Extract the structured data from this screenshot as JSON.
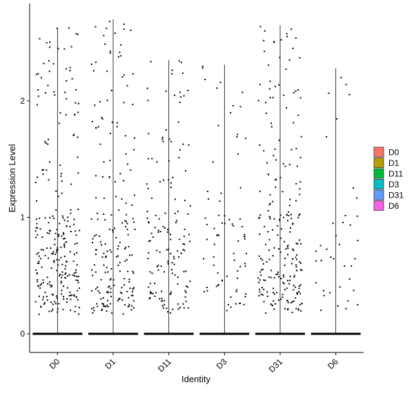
{
  "chart_data": {
    "type": "violin",
    "title": "",
    "xlabel": "Identity",
    "ylabel": "Expression Level",
    "ylim": [
      -0.15,
      2.85
    ],
    "yticks": [
      0,
      1,
      2
    ],
    "grid": false,
    "categories": [
      "D0",
      "D1",
      "D11",
      "D3",
      "D31",
      "D6"
    ],
    "legend": {
      "position": "right",
      "entries": [
        {
          "label": "D0",
          "color": "#F8766D"
        },
        {
          "label": "D1",
          "color": "#B79F00"
        },
        {
          "label": "D11",
          "color": "#00BA38"
        },
        {
          "label": "D3",
          "color": "#00BFC4"
        },
        {
          "label": "D31",
          "color": "#619CFF"
        },
        {
          "label": "D6",
          "color": "#F564E3"
        }
      ]
    },
    "series": [
      {
        "category": "D0",
        "max": 2.63,
        "nonzero_points": 260,
        "y_center": 0.72
      },
      {
        "category": "D1",
        "max": 2.7,
        "nonzero_points": 200,
        "y_center": 0.9
      },
      {
        "category": "D11",
        "max": 2.35,
        "nonzero_points": 150,
        "y_center": 0.7
      },
      {
        "category": "D3",
        "max": 2.31,
        "nonzero_points": 75,
        "y_center": 0.7
      },
      {
        "category": "D31",
        "max": 2.65,
        "nonzero_points": 230,
        "y_center": 0.7
      },
      {
        "category": "D6",
        "max": 2.28,
        "nonzero_points": 38,
        "y_center": 0.85
      }
    ]
  }
}
